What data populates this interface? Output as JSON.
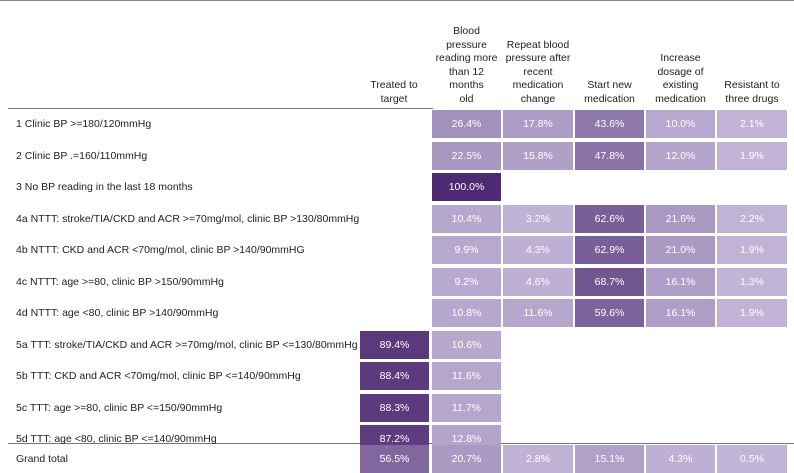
{
  "table": {
    "columns": [
      "Treated to target",
      "Blood pressure reading more than 12 months old",
      "Repeat blood pressure after recent medication change",
      "Start new medication",
      "Increase dosage of existing medication",
      "Resistant to three drugs"
    ],
    "header_lines": [
      [
        "Treated to",
        "target"
      ],
      [
        "Blood pressure",
        "reading more",
        "than 12 months",
        "old"
      ],
      [
        "Repeat blood",
        "pressure after",
        "recent",
        "medication",
        "change"
      ],
      [
        "Start new",
        "medication"
      ],
      [
        "Increase",
        "dosage of",
        "existing",
        "medication"
      ],
      [
        "Resistant to",
        "three drugs"
      ]
    ],
    "rows": [
      {
        "label": "1 Clinic BP >=180/120mmHg",
        "values": [
          null,
          "26.4%",
          "17.8%",
          "43.6%",
          "10.0%",
          "2.1%"
        ],
        "levels": [
          null,
          26.4,
          17.8,
          43.6,
          10.0,
          2.1
        ]
      },
      {
        "label": "2 Clinic BP .=160/110mmHg",
        "values": [
          null,
          "22.5%",
          "15.8%",
          "47.8%",
          "12.0%",
          "1.9%"
        ],
        "levels": [
          null,
          22.5,
          15.8,
          47.8,
          12.0,
          1.9
        ]
      },
      {
        "label": "3 No BP reading in the last 18 months",
        "values": [
          null,
          "100.0%",
          null,
          null,
          null,
          null
        ],
        "levels": [
          null,
          100.0,
          null,
          null,
          null,
          null
        ]
      },
      {
        "label": "4a NTTT: stroke/TIA/CKD and ACR >=70mg/mol, clinic BP >130/80mmHg",
        "values": [
          null,
          "10.4%",
          "3.2%",
          "62.6%",
          "21.6%",
          "2.2%"
        ],
        "levels": [
          null,
          10.4,
          3.2,
          62.6,
          21.6,
          2.2
        ]
      },
      {
        "label": "4b NTTT: CKD and ACR <70mg/mol, clinic BP >140/90mmHG",
        "values": [
          null,
          "9.9%",
          "4.3%",
          "62.9%",
          "21.0%",
          "1.9%"
        ],
        "levels": [
          null,
          9.9,
          4.3,
          62.9,
          21.0,
          1.9
        ]
      },
      {
        "label": "4c NTTT: age >=80, clinic BP >150/90mmHg",
        "values": [
          null,
          "9.2%",
          "4.6%",
          "68.7%",
          "16.1%",
          "1.3%"
        ],
        "levels": [
          null,
          9.2,
          4.6,
          68.7,
          16.1,
          1.3
        ]
      },
      {
        "label": "4d NTTT: age <80, clinic BP >140/90mmHg",
        "values": [
          null,
          "10.8%",
          "11.6%",
          "59.6%",
          "16.1%",
          "1.9%"
        ],
        "levels": [
          null,
          10.8,
          11.6,
          59.6,
          16.1,
          1.9
        ]
      },
      {
        "label": "5a TTT: stroke/TIA/CKD and ACR >=70mg/mol, clinic BP <=130/80mmHg",
        "values": [
          "89.4%",
          "10.6%",
          null,
          null,
          null,
          null
        ],
        "levels": [
          89.4,
          10.6,
          null,
          null,
          null,
          null
        ]
      },
      {
        "label": "5b TTT: CKD and ACR <70mg/mol, clinic BP <=140/90mmHg",
        "values": [
          "88.4%",
          "11.6%",
          null,
          null,
          null,
          null
        ],
        "levels": [
          88.4,
          11.6,
          null,
          null,
          null,
          null
        ]
      },
      {
        "label": "5c TTT: age >=80, clinic BP <=150/90mmHg",
        "values": [
          "88.3%",
          "11.7%",
          null,
          null,
          null,
          null
        ],
        "levels": [
          88.3,
          11.7,
          null,
          null,
          null,
          null
        ]
      },
      {
        "label": "5d TTT: age <80, clinic BP <=140/90mmHg",
        "values": [
          "87.2%",
          "12.8%",
          null,
          null,
          null,
          null
        ],
        "levels": [
          87.2,
          12.8,
          null,
          null,
          null,
          null
        ]
      }
    ],
    "total": {
      "label": "Grand total",
      "values": [
        "56.5%",
        "20.7%",
        "2.8%",
        "15.1%",
        "4.3%",
        "0.5%"
      ],
      "levels": [
        56.5,
        20.7,
        2.8,
        15.1,
        4.3,
        0.5
      ]
    }
  },
  "colors": {
    "light": "#c2b6d8",
    "dark": "#4e2a72",
    "text_on_light": "#ffffff",
    "text_on_dark": "#ffffff"
  }
}
